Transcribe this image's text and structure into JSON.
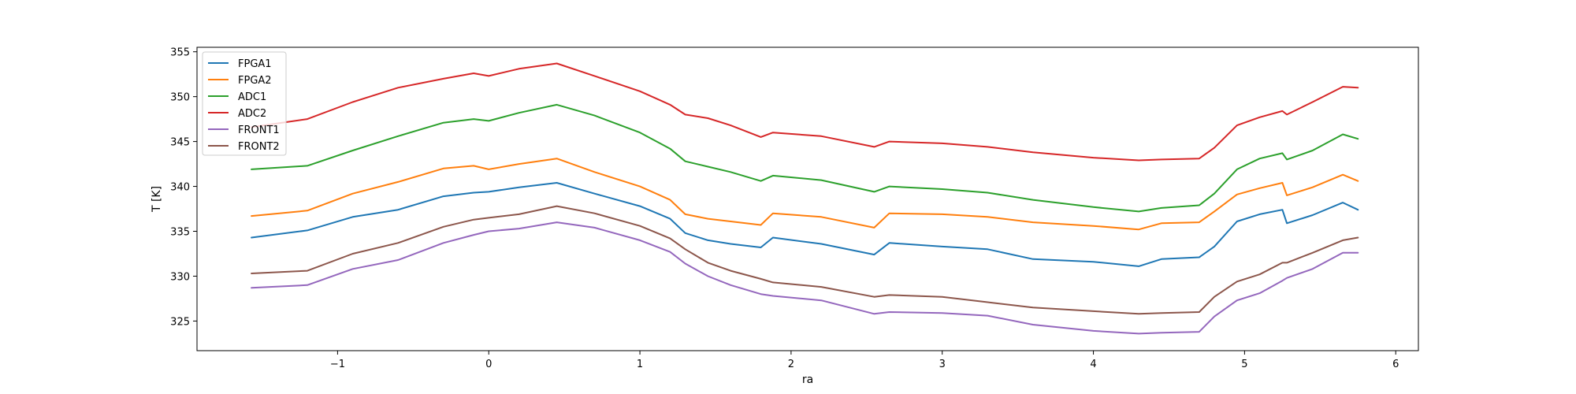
{
  "chart_data": {
    "type": "line",
    "title": "",
    "xlabel": "ra",
    "ylabel": "T [K]",
    "xlim": [
      -1.93,
      6.15
    ],
    "ylim": [
      321.7,
      355.5
    ],
    "xticks": [
      -1,
      0,
      1,
      2,
      3,
      4,
      5,
      6
    ],
    "yticks": [
      325,
      330,
      335,
      340,
      345,
      350,
      355
    ],
    "xtick_labels": [
      "−1",
      "0",
      "1",
      "2",
      "3",
      "4",
      "5",
      "6"
    ],
    "ytick_labels": [
      "325",
      "330",
      "335",
      "340",
      "345",
      "350",
      "355"
    ],
    "grid": false,
    "legend_position": "top-left",
    "series": [
      {
        "name": "FPGA1",
        "color": "#1f77b4",
        "x": [
          -1.57,
          -1.2,
          -0.9,
          -0.6,
          -0.3,
          -0.1,
          0.0,
          0.2,
          0.45,
          0.7,
          1.0,
          1.2,
          1.3,
          1.45,
          1.6,
          1.8,
          1.88,
          2.2,
          2.55,
          2.65,
          3.0,
          3.3,
          3.6,
          4.0,
          4.3,
          4.45,
          4.7,
          4.8,
          4.95,
          5.1,
          5.25,
          5.28,
          5.45,
          5.65,
          5.75
        ],
        "y": [
          334.3,
          335.1,
          336.6,
          337.4,
          338.9,
          339.3,
          339.4,
          339.9,
          340.4,
          339.2,
          337.8,
          336.4,
          334.8,
          334.0,
          333.6,
          333.2,
          334.3,
          333.6,
          332.4,
          333.7,
          333.3,
          333.0,
          331.9,
          331.6,
          331.1,
          331.9,
          332.1,
          333.3,
          336.1,
          336.9,
          337.4,
          335.9,
          336.8,
          338.2,
          337.4
        ]
      },
      {
        "name": "FPGA2",
        "color": "#ff7f0e",
        "x": [
          -1.57,
          -1.2,
          -0.9,
          -0.6,
          -0.3,
          -0.1,
          0.0,
          0.2,
          0.45,
          0.7,
          1.0,
          1.2,
          1.3,
          1.45,
          1.6,
          1.8,
          1.88,
          2.2,
          2.55,
          2.65,
          3.0,
          3.3,
          3.6,
          4.0,
          4.3,
          4.45,
          4.7,
          4.8,
          4.95,
          5.1,
          5.25,
          5.28,
          5.45,
          5.65,
          5.75
        ],
        "y": [
          336.7,
          337.3,
          339.2,
          340.5,
          342.0,
          342.3,
          341.9,
          342.5,
          343.1,
          341.6,
          340.0,
          338.5,
          336.9,
          336.4,
          336.1,
          335.7,
          337.0,
          336.6,
          335.4,
          337.0,
          336.9,
          336.6,
          336.0,
          335.6,
          335.2,
          335.9,
          336.0,
          337.2,
          339.1,
          339.8,
          340.4,
          339.0,
          339.9,
          341.3,
          340.6
        ]
      },
      {
        "name": "ADC1",
        "color": "#2ca02c",
        "x": [
          -1.57,
          -1.2,
          -0.9,
          -0.6,
          -0.3,
          -0.1,
          0.0,
          0.2,
          0.45,
          0.7,
          1.0,
          1.2,
          1.3,
          1.45,
          1.6,
          1.8,
          1.88,
          2.2,
          2.55,
          2.65,
          3.0,
          3.3,
          3.6,
          4.0,
          4.3,
          4.45,
          4.7,
          4.8,
          4.95,
          5.1,
          5.25,
          5.28,
          5.45,
          5.65,
          5.75
        ],
        "y": [
          341.9,
          342.3,
          344.0,
          345.6,
          347.1,
          347.5,
          347.3,
          348.2,
          349.1,
          347.9,
          346.0,
          344.2,
          342.8,
          342.2,
          341.6,
          340.6,
          341.2,
          340.7,
          339.4,
          340.0,
          339.7,
          339.3,
          338.5,
          337.7,
          337.2,
          337.6,
          337.9,
          339.2,
          341.9,
          343.1,
          343.7,
          343.0,
          344.0,
          345.8,
          345.3
        ]
      },
      {
        "name": "ADC2",
        "color": "#d62728",
        "x": [
          -1.57,
          -1.2,
          -0.9,
          -0.6,
          -0.3,
          -0.1,
          0.0,
          0.2,
          0.45,
          0.7,
          1.0,
          1.2,
          1.3,
          1.45,
          1.6,
          1.8,
          1.88,
          2.2,
          2.55,
          2.65,
          3.0,
          3.3,
          3.6,
          4.0,
          4.3,
          4.45,
          4.7,
          4.8,
          4.95,
          5.1,
          5.25,
          5.28,
          5.45,
          5.65,
          5.75
        ],
        "y": [
          346.6,
          347.5,
          349.4,
          351.0,
          352.0,
          352.6,
          352.3,
          353.1,
          353.7,
          352.3,
          350.6,
          349.1,
          348.0,
          347.6,
          346.8,
          345.5,
          346.0,
          345.6,
          344.4,
          345.0,
          344.8,
          344.4,
          343.8,
          343.2,
          342.9,
          343.0,
          343.1,
          344.3,
          346.8,
          347.7,
          348.4,
          348.0,
          349.4,
          351.1,
          351.0
        ]
      },
      {
        "name": "FRONT1",
        "color": "#9467bd",
        "x": [
          -1.57,
          -1.2,
          -0.9,
          -0.6,
          -0.3,
          -0.1,
          0.0,
          0.2,
          0.45,
          0.7,
          1.0,
          1.2,
          1.3,
          1.45,
          1.6,
          1.8,
          1.88,
          2.2,
          2.55,
          2.65,
          3.0,
          3.3,
          3.6,
          4.0,
          4.3,
          4.45,
          4.7,
          4.8,
          4.95,
          5.1,
          5.25,
          5.28,
          5.45,
          5.65,
          5.75
        ],
        "y": [
          328.7,
          329.0,
          330.8,
          331.8,
          333.7,
          334.6,
          335.0,
          335.3,
          336.0,
          335.4,
          334.0,
          332.7,
          331.4,
          330.0,
          329.0,
          328.0,
          327.8,
          327.3,
          325.8,
          326.0,
          325.9,
          325.6,
          324.6,
          323.9,
          323.6,
          323.7,
          323.8,
          325.5,
          327.3,
          328.1,
          329.5,
          329.8,
          330.8,
          332.6,
          332.6
        ]
      },
      {
        "name": "FRONT2",
        "color": "#8c564b",
        "x": [
          -1.57,
          -1.2,
          -0.9,
          -0.6,
          -0.3,
          -0.1,
          0.0,
          0.2,
          0.45,
          0.7,
          1.0,
          1.2,
          1.3,
          1.45,
          1.6,
          1.8,
          1.88,
          2.2,
          2.55,
          2.65,
          3.0,
          3.3,
          3.6,
          4.0,
          4.3,
          4.45,
          4.7,
          4.8,
          4.95,
          5.1,
          5.25,
          5.28,
          5.45,
          5.65,
          5.75
        ],
        "y": [
          330.3,
          330.6,
          332.5,
          333.7,
          335.5,
          336.3,
          336.5,
          336.9,
          337.8,
          337.0,
          335.6,
          334.2,
          333.0,
          331.5,
          330.6,
          329.7,
          329.3,
          328.8,
          327.7,
          327.9,
          327.7,
          327.1,
          326.5,
          326.1,
          325.8,
          325.9,
          326.0,
          327.7,
          329.4,
          330.2,
          331.5,
          331.5,
          332.6,
          334.0,
          334.3
        ]
      }
    ]
  }
}
